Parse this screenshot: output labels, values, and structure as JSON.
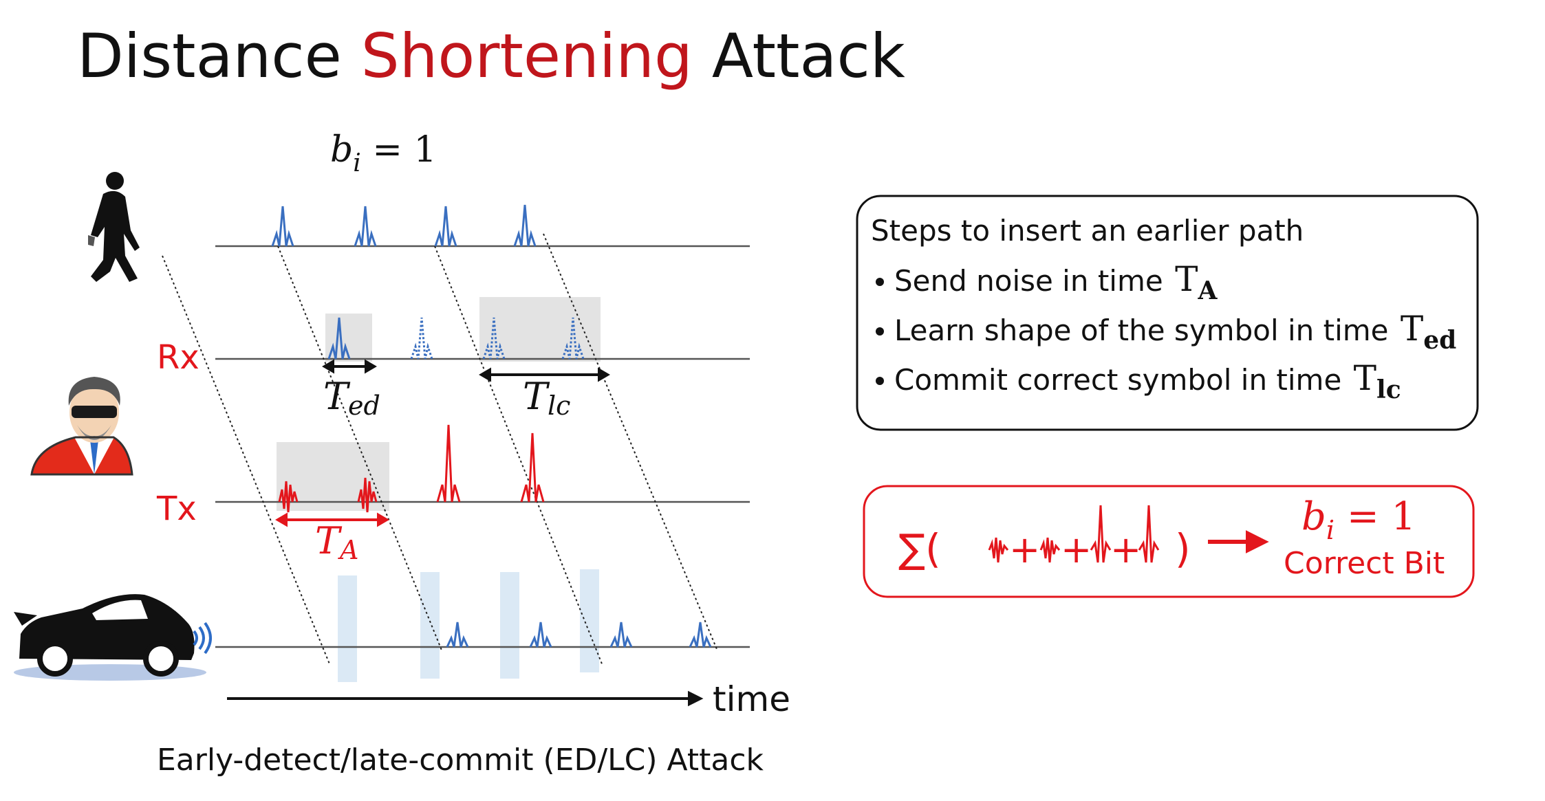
{
  "title": {
    "part1": "Distance ",
    "accent": "Shortening",
    "part2": " Attack",
    "accent_color": "#c0161c"
  },
  "diagram": {
    "bit_label": {
      "var": "b",
      "sub": "i",
      "eq": " = 1"
    },
    "rx_label": "Rx",
    "tx_label": "Tx",
    "t_ed": {
      "var": "T",
      "sub": "ed"
    },
    "t_lc": {
      "var": "T",
      "sub": "lc"
    },
    "t_a": {
      "var": "T",
      "sub": "A"
    },
    "time_label": "time",
    "caption": "Early-detect/late-commit (ED/LC) Attack",
    "icons": [
      "person-walking-icon",
      "attacker-icon",
      "car-icon"
    ],
    "colors": {
      "pulse_blue": "#3a6fc0",
      "pulse_red": "#e3161c",
      "shade_gray": "#e3e3e3",
      "shade_blue": "#dbe9f5",
      "label_red": "#e3161c"
    }
  },
  "steps_box": {
    "heading": "Steps to insert an earlier path",
    "items": [
      {
        "text": "Send noise in time ",
        "math_var": "T",
        "math_sub": "A"
      },
      {
        "text": "Learn shape of the symbol in time ",
        "math_var": "T",
        "math_sub": "ed"
      },
      {
        "text": "Commit correct symbol in time ",
        "math_var": "T",
        "math_sub": "lc"
      }
    ]
  },
  "sum_box": {
    "sigma": "∑(",
    "close": ")",
    "plus": "+",
    "result": {
      "var": "b",
      "sub": "i",
      "eq": " = 1"
    },
    "label": "Correct Bit",
    "color": "#e3161c"
  }
}
